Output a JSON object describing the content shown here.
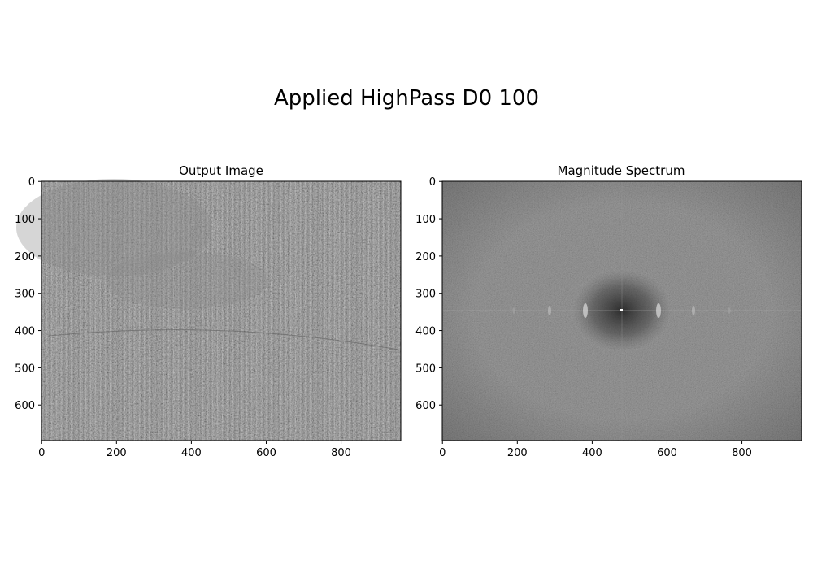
{
  "figure": {
    "suptitle": "Applied HighPass D0 100"
  },
  "chart_data": [
    {
      "type": "heatmap",
      "title": "Output Image",
      "xlabel": "",
      "ylabel": "",
      "xlim": [
        -0.5,
        959.5
      ],
      "ylim": [
        695.5,
        -0.5
      ],
      "x_ticks": [
        0,
        200,
        400,
        600,
        800
      ],
      "y_ticks": [
        0,
        100,
        200,
        300,
        400,
        500,
        600
      ],
      "colormap": "gray",
      "description_values": {
        "base_gray": "#808080"
      }
    },
    {
      "type": "heatmap",
      "title": "Magnitude Spectrum",
      "xlabel": "",
      "ylabel": "",
      "xlim": [
        -0.5,
        959.5
      ],
      "ylim": [
        695.5,
        -0.5
      ],
      "x_ticks": [
        0,
        200,
        400,
        600,
        800
      ],
      "y_ticks": [
        0,
        100,
        200,
        300,
        400,
        500,
        600
      ],
      "colormap": "gray",
      "description_values": {
        "base_gray": "#7d7d7d"
      }
    }
  ]
}
